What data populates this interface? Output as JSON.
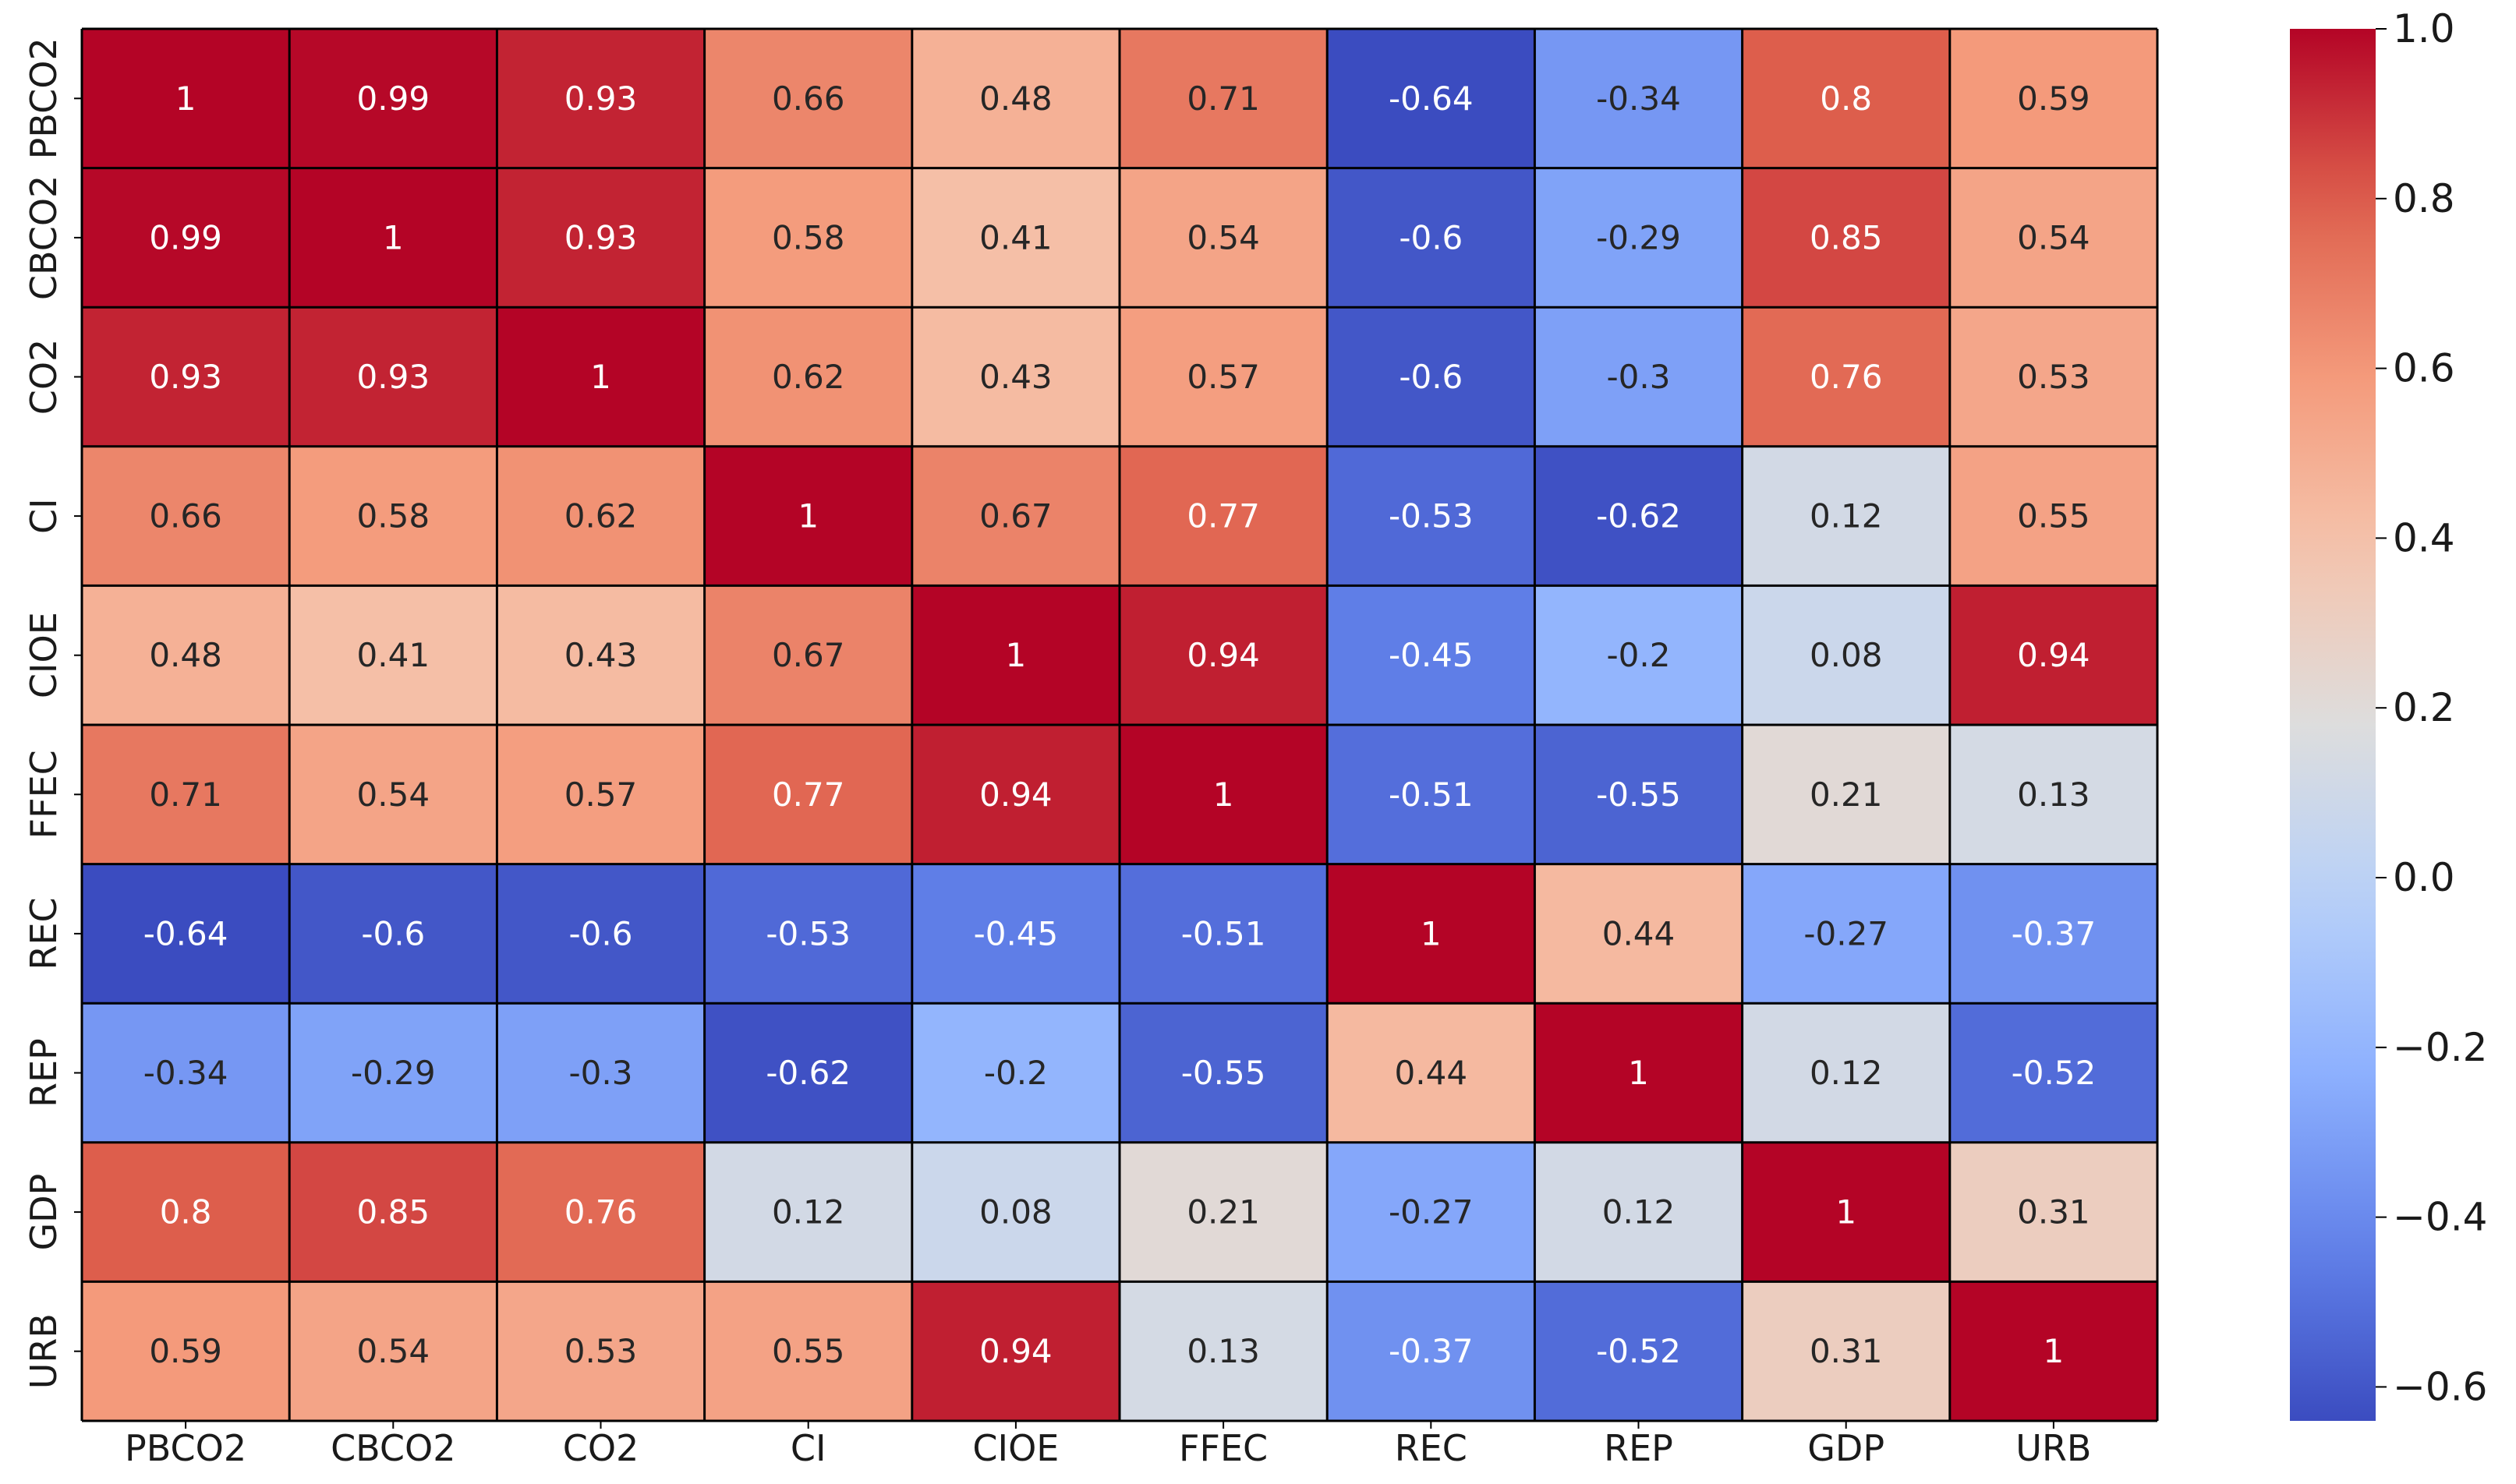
{
  "chart_data": {
    "type": "heatmap",
    "title": "",
    "subtitle": "",
    "xlabel": "",
    "ylabel": "",
    "colormap": "coolwarm",
    "colors": {
      "low": "#3b4cc0",
      "mid": "#dddddd",
      "high": "#b40426",
      "light_text": "#ffffff",
      "dark_text": "#262626",
      "grid_line": "#000000"
    },
    "vmin": -0.64,
    "vmax": 1.0,
    "x_labels": [
      "PBCO2",
      "CBCO2",
      "CO2",
      "CI",
      "CIOE",
      "FFEC",
      "REC",
      "REP",
      "GDP",
      "URB"
    ],
    "y_labels": [
      "PBCO2",
      "CBCO2",
      "CO2",
      "CI",
      "CIOE",
      "FFEC",
      "REC",
      "REP",
      "GDP",
      "URB"
    ],
    "values": [
      [
        1,
        0.99,
        0.93,
        0.66,
        0.48,
        0.71,
        -0.64,
        -0.34,
        0.8,
        0.59
      ],
      [
        0.99,
        1,
        0.93,
        0.58,
        0.41,
        0.54,
        -0.6,
        -0.29,
        0.85,
        0.54
      ],
      [
        0.93,
        0.93,
        1,
        0.62,
        0.43,
        0.57,
        -0.6,
        -0.3,
        0.76,
        0.53
      ],
      [
        0.66,
        0.58,
        0.62,
        1,
        0.67,
        0.77,
        -0.53,
        -0.62,
        0.12,
        0.55
      ],
      [
        0.48,
        0.41,
        0.43,
        0.67,
        1,
        0.94,
        -0.45,
        -0.2,
        0.08,
        0.94
      ],
      [
        0.71,
        0.54,
        0.57,
        0.77,
        0.94,
        1,
        -0.51,
        -0.55,
        0.21,
        0.13
      ],
      [
        -0.64,
        -0.6,
        -0.6,
        -0.53,
        -0.45,
        -0.51,
        1,
        0.44,
        -0.27,
        -0.37
      ],
      [
        -0.34,
        -0.29,
        -0.3,
        -0.62,
        -0.2,
        -0.55,
        0.44,
        1,
        0.12,
        -0.52
      ],
      [
        0.8,
        0.85,
        0.76,
        0.12,
        0.08,
        0.21,
        -0.27,
        0.12,
        1,
        0.31
      ],
      [
        0.59,
        0.54,
        0.53,
        0.55,
        0.94,
        0.13,
        -0.37,
        -0.52,
        0.31,
        1
      ]
    ],
    "colorbar": {
      "ticks": [
        1.0,
        0.8,
        0.6,
        0.4,
        0.2,
        0.0,
        -0.2,
        -0.4,
        -0.6
      ],
      "tick_labels": [
        "1.0",
        "0.8",
        "0.6",
        "0.4",
        "0.2",
        "0.0",
        "−0.2",
        "−0.4",
        "−0.6"
      ]
    }
  }
}
